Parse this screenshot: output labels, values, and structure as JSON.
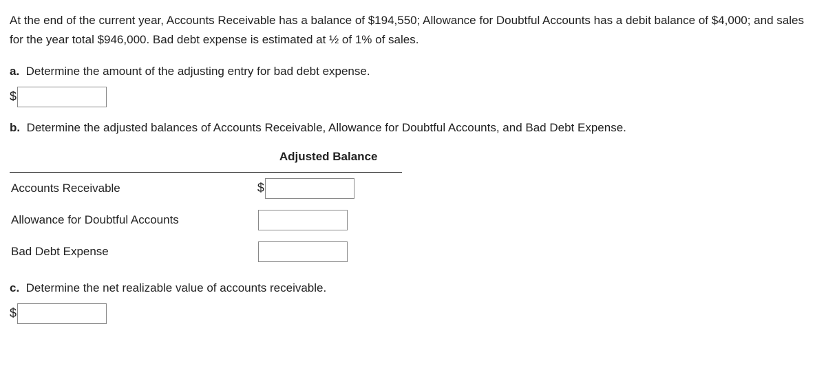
{
  "intro": "At the end of the current year, Accounts Receivable has a balance of $194,550; Allowance for Doubtful Accounts has a debit balance of $4,000; and sales for the year total $946,000. Bad debt expense is estimated at ½ of 1% of sales.",
  "a": {
    "letter": "a.",
    "prompt": "Determine the amount of the adjusting entry for bad debt expense.",
    "currency": "$",
    "value": ""
  },
  "b": {
    "letter": "b.",
    "prompt": "Determine the adjusted balances of Accounts Receivable, Allowance for Doubtful Accounts, and Bad Debt Expense.",
    "table": {
      "header": "Adjusted Balance",
      "rows": [
        {
          "label": "Accounts Receivable",
          "currency": "$",
          "value": ""
        },
        {
          "label": "Allowance for Doubtful Accounts",
          "currency": "",
          "value": ""
        },
        {
          "label": "Bad Debt Expense",
          "currency": "",
          "value": ""
        }
      ]
    }
  },
  "c": {
    "letter": "c.",
    "prompt": "Determine the net realizable value of accounts receivable.",
    "currency": "$",
    "value": ""
  }
}
